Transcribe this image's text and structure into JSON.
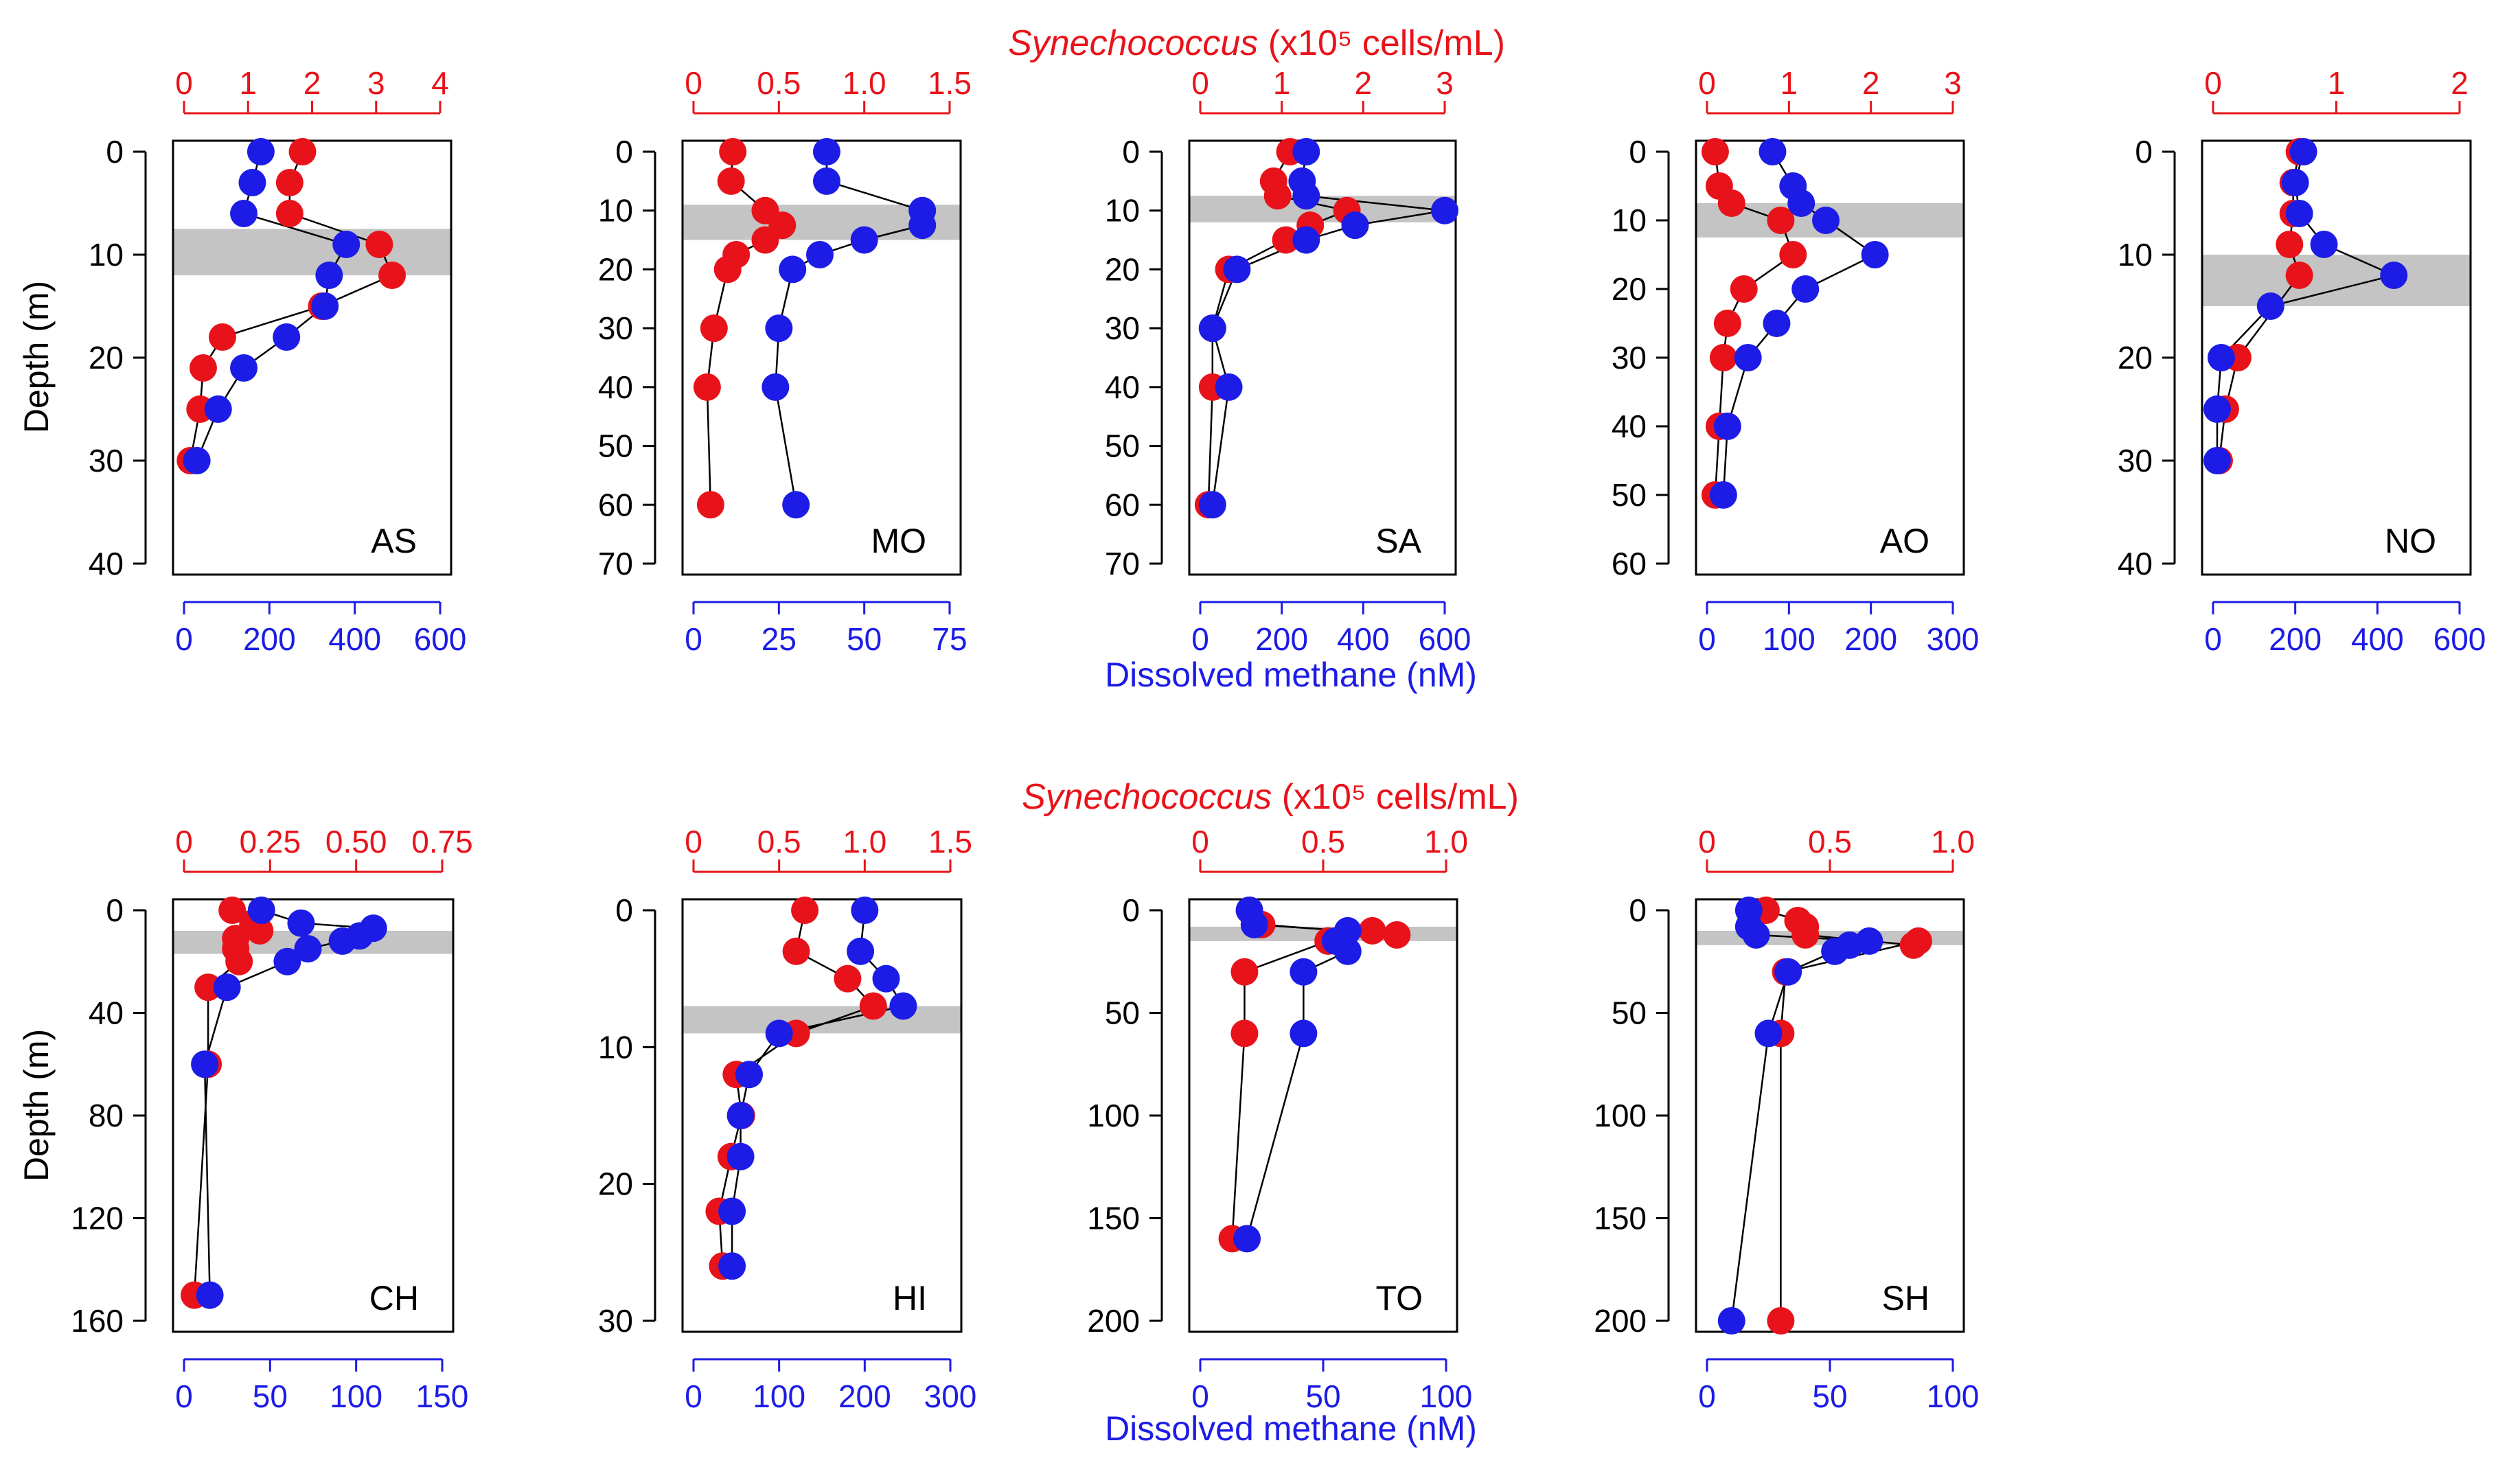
{
  "figure": {
    "top_row_xlabel": {
      "italic": "Synechococcus",
      "rest": " (x10⁵ cells/mL)"
    },
    "bottom_row_xlabel": {
      "italic": "Synechococcus",
      "rest": " (x10⁵ cells/mL)"
    },
    "top_row_methane_label": "Dissolved methane (nM)",
    "bottom_row_methane_label": "Dissolved methane (nM)",
    "depth_label": "Depth (m)",
    "colors": {
      "synechococcus": "#e8131a",
      "methane": "#1c1ce6",
      "band": "#c4c4c4",
      "line": "#000000"
    }
  },
  "chart_data": [
    {
      "type": "scatter",
      "title": "AS",
      "red_ticks": [
        "0",
        "1",
        "2",
        "3",
        "4"
      ],
      "red_xlim": [
        0,
        4
      ],
      "blue_ticks": [
        "0",
        "200",
        "400",
        "600"
      ],
      "blue_xlim": [
        0,
        600
      ],
      "depth_ticks": [
        "0",
        "10",
        "20",
        "30",
        "40"
      ],
      "ylim": [
        0,
        40
      ],
      "band": [
        7.5,
        12
      ],
      "series": [
        {
          "name": "Synechococcus",
          "x": [
            1.85,
            1.65,
            1.65,
            3.05,
            3.25,
            2.15,
            0.6,
            0.3,
            0.25,
            0.1
          ],
          "depth": [
            0,
            3,
            6,
            9,
            12,
            15,
            18,
            21,
            25,
            30
          ]
        },
        {
          "name": "Dissolved methane",
          "x": [
            180,
            160,
            140,
            380,
            340,
            330,
            240,
            140,
            80,
            30
          ],
          "depth": [
            0,
            3,
            6,
            9,
            12,
            15,
            18,
            21,
            25,
            30
          ]
        }
      ]
    },
    {
      "type": "scatter",
      "title": "MO",
      "red_ticks": [
        "0",
        "0.5",
        "1.0",
        "1.5"
      ],
      "red_xlim": [
        0,
        1.5
      ],
      "blue_ticks": [
        "0",
        "25",
        "50",
        "75"
      ],
      "blue_xlim": [
        0,
        75
      ],
      "depth_ticks": [
        "0",
        "10",
        "20",
        "30",
        "40",
        "50",
        "60",
        "70"
      ],
      "ylim": [
        0,
        70
      ],
      "band": [
        9,
        15
      ],
      "series": [
        {
          "name": "Synechococcus",
          "x": [
            0.23,
            0.22,
            0.42,
            0.52,
            0.42,
            0.25,
            0.2,
            0.12,
            0.08,
            0.1
          ],
          "depth": [
            0,
            5,
            10,
            12.5,
            15,
            17.5,
            20,
            30,
            40,
            60
          ]
        },
        {
          "name": "Dissolved methane",
          "x": [
            39,
            39,
            67,
            67,
            50,
            37,
            29,
            25,
            24,
            30
          ],
          "depth": [
            0,
            5,
            10,
            12.5,
            15,
            17.5,
            20,
            30,
            40,
            60
          ]
        }
      ]
    },
    {
      "type": "scatter",
      "title": "SA",
      "red_ticks": [
        "0",
        "1",
        "2",
        "3"
      ],
      "red_xlim": [
        0,
        3
      ],
      "blue_ticks": [
        "0",
        "200",
        "400",
        "600"
      ],
      "blue_xlim": [
        0,
        600
      ],
      "depth_ticks": [
        "0",
        "10",
        "20",
        "30",
        "40",
        "50",
        "60",
        "70"
      ],
      "ylim": [
        0,
        70
      ],
      "band": [
        7.5,
        12
      ],
      "series": [
        {
          "name": "Synechococcus",
          "x": [
            1.1,
            0.9,
            0.95,
            1.8,
            1.35,
            1.05,
            0.35,
            0.15,
            0.15,
            0.1
          ],
          "depth": [
            0,
            5,
            7.5,
            10,
            12.5,
            15,
            20,
            30,
            40,
            60
          ]
        },
        {
          "name": "Dissolved methane",
          "x": [
            260,
            250,
            260,
            600,
            380,
            260,
            90,
            30,
            70,
            30
          ],
          "depth": [
            0,
            5,
            7.5,
            10,
            12.5,
            15,
            20,
            30,
            40,
            60
          ]
        }
      ]
    },
    {
      "type": "scatter",
      "title": "AO",
      "red_ticks": [
        "0",
        "1",
        "2",
        "3"
      ],
      "red_xlim": [
        0,
        3
      ],
      "blue_ticks": [
        "0",
        "100",
        "200",
        "300"
      ],
      "blue_xlim": [
        0,
        300
      ],
      "depth_ticks": [
        "0",
        "10",
        "20",
        "30",
        "40",
        "50",
        "60"
      ],
      "ylim": [
        0,
        60
      ],
      "band": [
        7.5,
        12.5
      ],
      "series": [
        {
          "name": "Synechococcus",
          "x": [
            0.1,
            0.15,
            0.3,
            0.9,
            1.05,
            0.45,
            0.25,
            0.2,
            0.15,
            0.1
          ],
          "depth": [
            0,
            5,
            7.5,
            10,
            15,
            20,
            25,
            30,
            40,
            50
          ]
        },
        {
          "name": "Dissolved methane",
          "x": [
            80,
            105,
            115,
            145,
            205,
            120,
            85,
            50,
            25,
            20
          ],
          "depth": [
            0,
            5,
            7.5,
            10,
            15,
            20,
            25,
            30,
            40,
            50
          ]
        }
      ]
    },
    {
      "type": "scatter",
      "title": "NO",
      "red_ticks": [
        "0",
        "1",
        "2"
      ],
      "red_xlim": [
        0,
        2
      ],
      "blue_ticks": [
        "0",
        "200",
        "400",
        "600"
      ],
      "blue_xlim": [
        0,
        600
      ],
      "depth_ticks": [
        "0",
        "10",
        "20",
        "30",
        "40"
      ],
      "ylim": [
        0,
        40
      ],
      "band": [
        10,
        15
      ],
      "series": [
        {
          "name": "Synechococcus",
          "x": [
            0.7,
            0.65,
            0.65,
            0.62,
            0.7,
            0.2,
            0.1,
            0.05
          ],
          "depth": [
            0,
            3,
            6,
            9,
            12,
            20,
            25,
            30
          ]
        },
        {
          "name": "Dissolved methane",
          "x": [
            220,
            200,
            210,
            270,
            440,
            140,
            20,
            10,
            10
          ],
          "depth": [
            0,
            3,
            6,
            9,
            12,
            15,
            20,
            25,
            30
          ]
        }
      ]
    },
    {
      "type": "scatter",
      "title": "CH",
      "red_ticks": [
        "0",
        "0.25",
        "0.50",
        "0.75"
      ],
      "red_xlim": [
        0,
        0.75
      ],
      "blue_ticks": [
        "0",
        "50",
        "100",
        "150"
      ],
      "blue_xlim": [
        0,
        150
      ],
      "depth_ticks": [
        "0",
        "40",
        "80",
        "120",
        "160"
      ],
      "ylim": [
        0,
        160
      ],
      "band": [
        8,
        17
      ],
      "series": [
        {
          "name": "Synechococcus",
          "x": [
            0.14,
            0.2,
            0.22,
            0.15,
            0.15,
            0.16,
            0.07,
            0.07,
            0.03
          ],
          "depth": [
            0,
            5,
            8,
            11,
            15,
            20,
            30,
            60,
            150
          ]
        },
        {
          "name": "Dissolved methane",
          "x": [
            45,
            68,
            110,
            102,
            92,
            72,
            60,
            25,
            12,
            15
          ],
          "depth": [
            0,
            5,
            7,
            10,
            12,
            15,
            20,
            30,
            60,
            150
          ]
        }
      ]
    },
    {
      "type": "scatter",
      "title": "HI",
      "red_ticks": [
        "0",
        "0.5",
        "1.0",
        "1.5"
      ],
      "red_xlim": [
        0,
        1.5
      ],
      "blue_ticks": [
        "0",
        "100",
        "200",
        "300"
      ],
      "blue_xlim": [
        0,
        300
      ],
      "depth_ticks": [
        "0",
        "10",
        "20",
        "30"
      ],
      "ylim": [
        0,
        30
      ],
      "band": [
        7,
        9
      ],
      "series": [
        {
          "name": "Synechococcus",
          "x": [
            0.65,
            0.6,
            0.9,
            1.05,
            0.6,
            0.25,
            0.28,
            0.22,
            0.15,
            0.17
          ],
          "depth": [
            0,
            3,
            5,
            7,
            9,
            12,
            15,
            18,
            22,
            26
          ]
        },
        {
          "name": "Dissolved methane",
          "x": [
            200,
            195,
            225,
            245,
            100,
            65,
            55,
            55,
            45,
            45
          ],
          "depth": [
            0,
            3,
            5,
            7,
            9,
            12,
            15,
            18,
            22,
            26
          ]
        }
      ]
    },
    {
      "type": "scatter",
      "title": "TO",
      "red_ticks": [
        "0",
        "0.5",
        "1.0"
      ],
      "red_xlim": [
        0,
        1.0
      ],
      "blue_ticks": [
        "0",
        "50",
        "100"
      ],
      "blue_xlim": [
        0,
        100
      ],
      "depth_ticks": [
        "0",
        "50",
        "100",
        "150",
        "200"
      ],
      "ylim": [
        0,
        200
      ],
      "band": [
        8,
        15
      ],
      "series": [
        {
          "name": "Synechococcus",
          "x": [
            0.2,
            0.25,
            0.8,
            0.7,
            0.52,
            0.18,
            0.18,
            0.13
          ],
          "depth": [
            0,
            7,
            12,
            10,
            15,
            30,
            60,
            160
          ]
        },
        {
          "name": "Dissolved methane",
          "x": [
            20,
            22,
            60,
            55,
            60,
            42,
            42,
            19
          ],
          "depth": [
            0,
            7,
            10,
            15,
            20,
            30,
            60,
            160
          ]
        }
      ]
    },
    {
      "type": "scatter",
      "title": "SH",
      "red_ticks": [
        "0",
        "0.5",
        "1.0"
      ],
      "red_xlim": [
        0,
        1.0
      ],
      "blue_ticks": [
        "0",
        "50",
        "100"
      ],
      "blue_xlim": [
        0,
        100
      ],
      "depth_ticks": [
        "0",
        "50",
        "100",
        "150",
        "200"
      ],
      "ylim": [
        0,
        200
      ],
      "band": [
        10,
        17
      ],
      "series": [
        {
          "name": "Synechococcus",
          "x": [
            0.24,
            0.37,
            0.4,
            0.4,
            0.84,
            0.86,
            0.32,
            0.3,
            0.3
          ],
          "depth": [
            0,
            5,
            8,
            12,
            17,
            15,
            30,
            60,
            200
          ]
        },
        {
          "name": "Dissolved methane",
          "x": [
            17,
            17,
            20,
            66,
            58,
            52,
            33,
            25,
            10
          ],
          "depth": [
            0,
            8,
            12,
            15,
            17,
            20,
            30,
            60,
            200
          ]
        }
      ]
    }
  ]
}
